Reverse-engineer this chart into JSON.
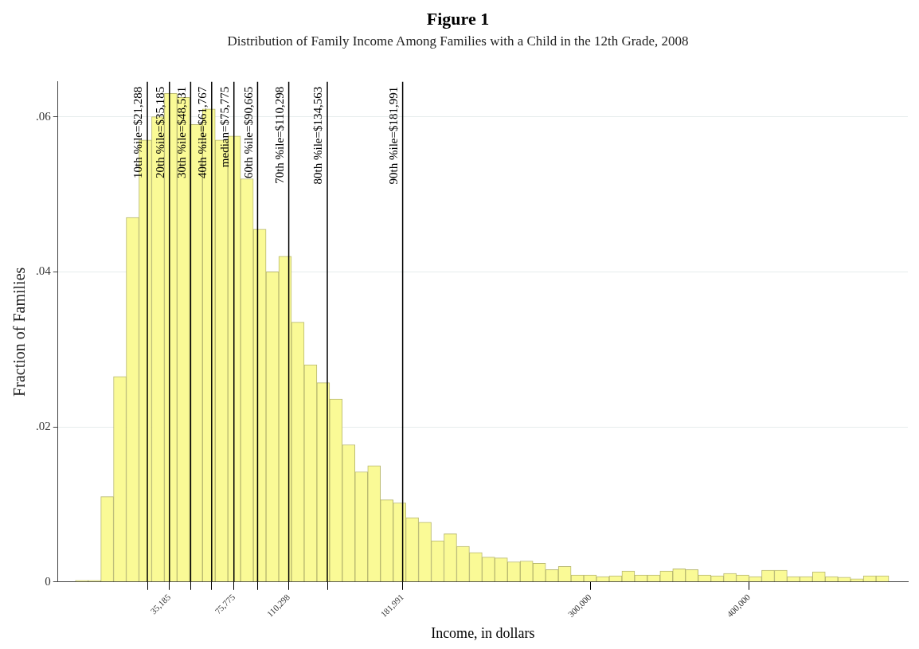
{
  "chart_data": {
    "type": "histogram",
    "title": "Figure 1",
    "subtitle": "Distribution of Family Income Among Families with a Child in the 12th Grade, 2008",
    "xlabel": "Income, in dollars",
    "ylabel": "Fraction of Families",
    "color": "#fafa96",
    "bins": [
      -24000,
      -16000,
      -8000,
      0,
      8000,
      16000,
      24000,
      32000,
      40000,
      48000,
      56000,
      64000,
      72000,
      80000,
      88000,
      96000,
      104000,
      112000,
      120000,
      128000,
      136000,
      144000,
      152000,
      160000,
      168000,
      176000,
      184000,
      192000,
      200000,
      208000,
      216000,
      224000,
      232000,
      240000,
      248000,
      256000,
      264000,
      272000,
      280000,
      288000,
      296000,
      304000,
      312000,
      320000,
      328000,
      336000,
      344000,
      352000,
      360000,
      368000,
      376000,
      384000,
      392000,
      400000,
      408000,
      416000,
      424000,
      432000,
      440000,
      448000,
      456000,
      464000,
      472000,
      480000,
      488000
    ],
    "values": [
      0.0002,
      0.0002,
      0.011,
      0.0265,
      0.047,
      0.057,
      0.06,
      0.063,
      0.0625,
      0.059,
      0.061,
      0.057,
      0.0575,
      0.052,
      0.0455,
      0.04,
      0.042,
      0.0335,
      0.028,
      0.0257,
      0.0236,
      0.0177,
      0.0142,
      0.015,
      0.0106,
      0.0102,
      0.0083,
      0.0077,
      0.0053,
      0.0062,
      0.0046,
      0.0038,
      0.0032,
      0.0031,
      0.0026,
      0.0027,
      0.0024,
      0.0016,
      0.002,
      0.0009,
      0.0009,
      0.0007,
      0.0008,
      0.0014,
      0.0009,
      0.0009,
      0.0014,
      0.0017,
      0.0016,
      0.0009,
      0.0008,
      0.0011,
      0.0009,
      0.0007,
      0.0015,
      0.0015,
      0.0007,
      0.0007,
      0.0013,
      0.0007,
      0.0006,
      0.0004,
      0.0008,
      0.0008
    ],
    "xlim": [
      -35000,
      500000
    ],
    "xticks": [
      {
        "value": 21288,
        "label": null
      },
      {
        "value": 35185,
        "label": "35,185"
      },
      {
        "value": 48531,
        "label": null
      },
      {
        "value": 61767,
        "label": null
      },
      {
        "value": 75775,
        "label": "75,775"
      },
      {
        "value": 90665,
        "label": null
      },
      {
        "value": 110298,
        "label": "110,298"
      },
      {
        "value": 134563,
        "label": null
      },
      {
        "value": 181991,
        "label": "181,991"
      },
      {
        "value": 300000,
        "label": "300,000"
      },
      {
        "value": 400000,
        "label": "400,000"
      }
    ],
    "ylim": [
      0,
      0.0645
    ],
    "yticks": [
      {
        "value": 0,
        "label": "0"
      },
      {
        "value": 0.02,
        "label": ".02"
      },
      {
        "value": 0.04,
        "label": ".04"
      },
      {
        "value": 0.06,
        "label": ".06"
      }
    ],
    "grid": "y",
    "ref_lines": [
      {
        "axis": "x",
        "value": 21288,
        "label": "10th %ile=$21,288",
        "color": "#000000"
      },
      {
        "axis": "x",
        "value": 35185,
        "label": "20th %ile=$35,185",
        "color": "#000000"
      },
      {
        "axis": "x",
        "value": 48531,
        "label": "30th %ile=$48,531",
        "color": "#000000"
      },
      {
        "axis": "x",
        "value": 61767,
        "label": "40th %ile=$61,767",
        "color": "#000000"
      },
      {
        "axis": "x",
        "value": 75775,
        "label": "median=$75,775",
        "color": "#000000"
      },
      {
        "axis": "x",
        "value": 90665,
        "label": "60th %ile=$90,665",
        "color": "#000000"
      },
      {
        "axis": "x",
        "value": 110298,
        "label": "70th %ile=$110,298",
        "color": "#000000"
      },
      {
        "axis": "x",
        "value": 134563,
        "label": "80th %ile=$134,563",
        "color": "#000000"
      },
      {
        "axis": "x",
        "value": 181991,
        "label": "90th %ile=$181,991",
        "color": "#000000"
      }
    ]
  }
}
